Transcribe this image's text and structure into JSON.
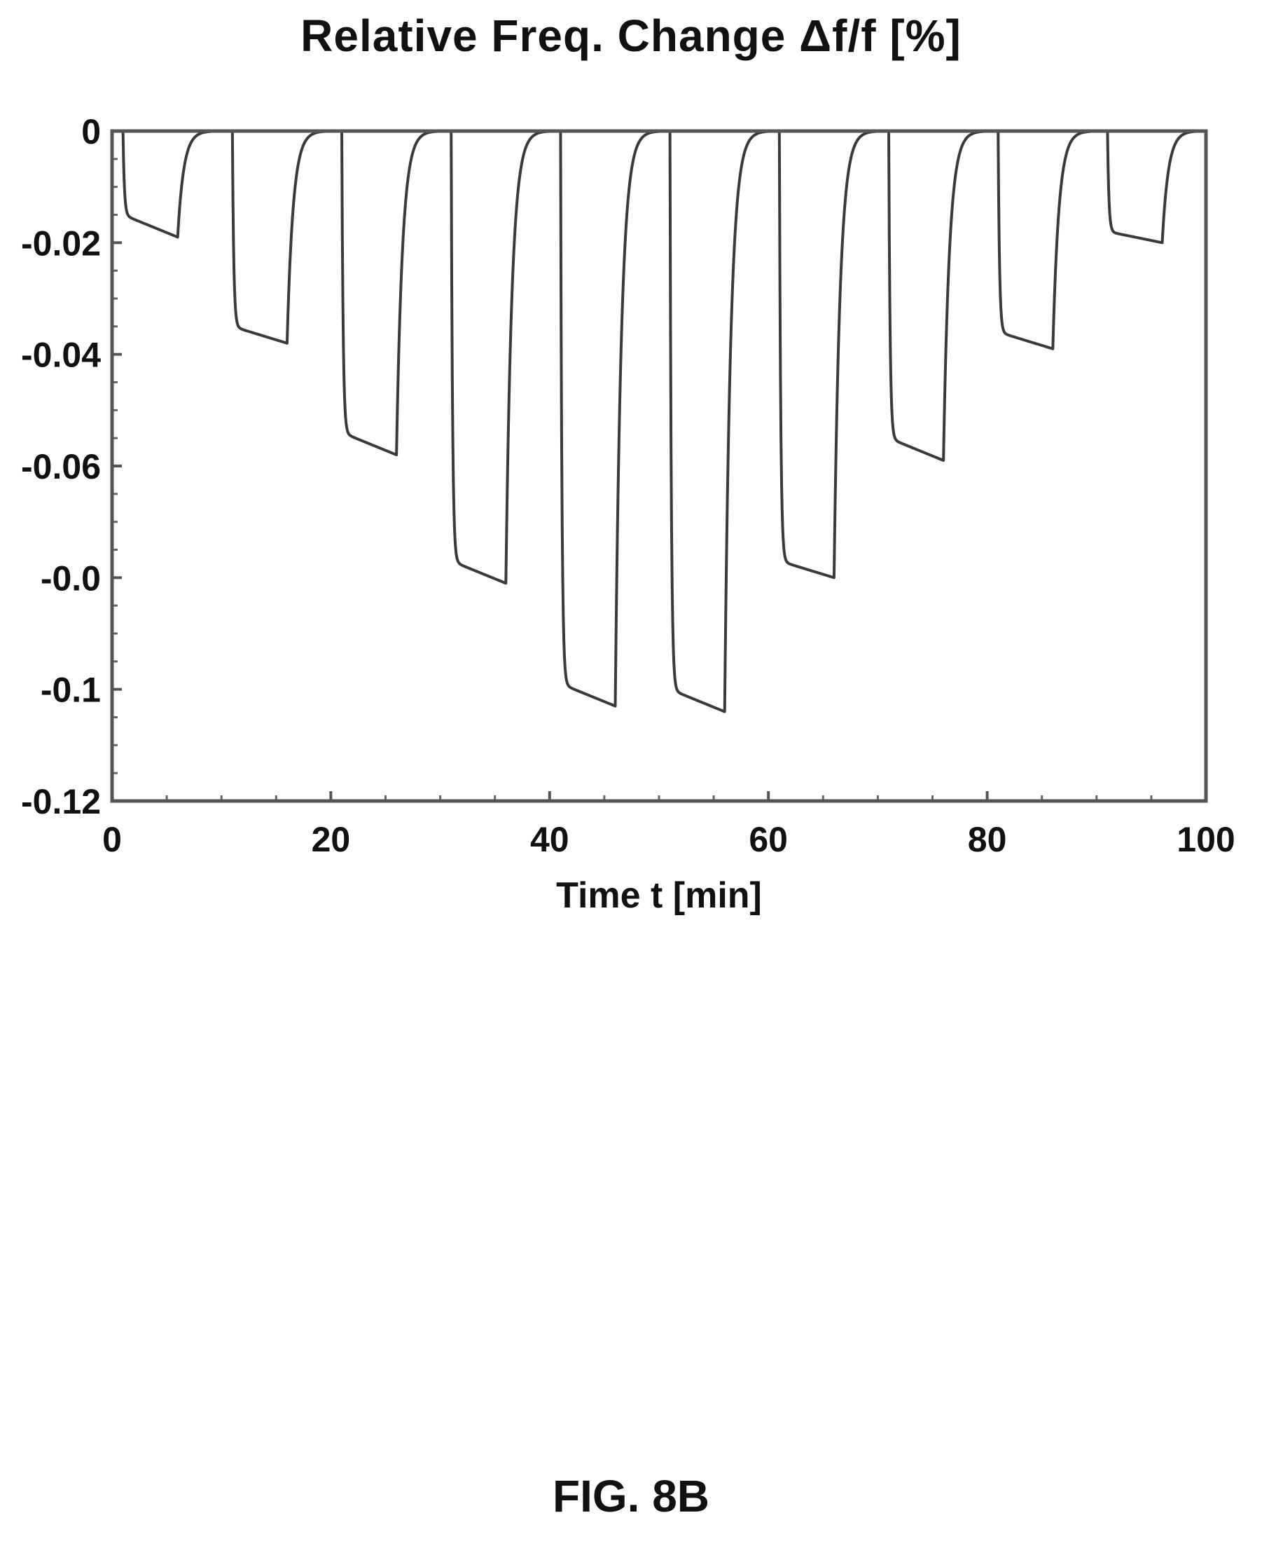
{
  "chart_data": {
    "type": "line",
    "title": "Relative Freq. Change Δf/f [%]",
    "xlabel": "Time t [min]",
    "ylabel": "",
    "xlim": [
      0,
      100
    ],
    "ylim": [
      -0.12,
      0
    ],
    "x_ticks": [
      {
        "value": 0,
        "label": "0"
      },
      {
        "value": 20,
        "label": "20"
      },
      {
        "value": 40,
        "label": "40"
      },
      {
        "value": 60,
        "label": "60"
      },
      {
        "value": 80,
        "label": "80"
      },
      {
        "value": 100,
        "label": "100"
      }
    ],
    "y_ticks": [
      {
        "value": 0,
        "label": "0"
      },
      {
        "value": -0.02,
        "label": "-0.02"
      },
      {
        "value": -0.04,
        "label": "-0.04"
      },
      {
        "value": -0.06,
        "label": "-0.06"
      },
      {
        "value": -0.08,
        "label": "-0.0"
      },
      {
        "value": -0.1,
        "label": "-0.1"
      },
      {
        "value": -0.12,
        "label": "-0.12"
      }
    ],
    "grid": false,
    "legend": "none",
    "series": [
      {
        "pulses": [
          {
            "start": 1,
            "end": 6,
            "initial": -0.015,
            "final": -0.019
          },
          {
            "start": 11,
            "end": 16,
            "initial": -0.035,
            "final": -0.038
          },
          {
            "start": 21,
            "end": 26,
            "initial": -0.054,
            "final": -0.058
          },
          {
            "start": 31,
            "end": 36,
            "initial": -0.077,
            "final": -0.081
          },
          {
            "start": 41,
            "end": 46,
            "initial": -0.099,
            "final": -0.103
          },
          {
            "start": 51,
            "end": 56,
            "initial": -0.1,
            "final": -0.104
          },
          {
            "start": 61,
            "end": 66,
            "initial": -0.077,
            "final": -0.08
          },
          {
            "start": 71,
            "end": 76,
            "initial": -0.055,
            "final": -0.059
          },
          {
            "start": 81,
            "end": 86,
            "initial": -0.036,
            "final": -0.039
          },
          {
            "start": 91,
            "end": 96,
            "initial": -0.018,
            "final": -0.02
          }
        ]
      }
    ]
  },
  "figure": {
    "caption": "FIG. 8B"
  }
}
